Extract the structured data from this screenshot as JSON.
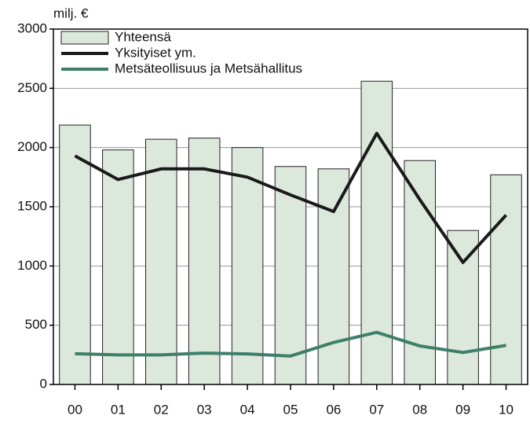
{
  "chart_data": {
    "type": "bar",
    "ylabel": "milj. €",
    "categories": [
      "00",
      "01",
      "02",
      "03",
      "04",
      "05",
      "06",
      "07",
      "08",
      "09",
      "10"
    ],
    "series": [
      {
        "name": "Yhteensä",
        "type": "bar",
        "color": "#dce8dc",
        "values": [
          2190,
          1980,
          2070,
          2080,
          2000,
          1840,
          1820,
          2560,
          1890,
          1300,
          1770
        ]
      },
      {
        "name": "Yksityiset ym.",
        "type": "line",
        "color": "#1a1a1a",
        "values": [
          1930,
          1730,
          1820,
          1820,
          1750,
          1600,
          1460,
          2120,
          1560,
          1030,
          1430
        ]
      },
      {
        "name": "Metsäteollisuus ja Metsähallitus",
        "type": "line",
        "color": "#3d7f68",
        "values": [
          260,
          250,
          250,
          265,
          258,
          240,
          355,
          440,
          325,
          270,
          330
        ]
      }
    ],
    "ylim": [
      0,
      3000
    ],
    "yticks": [
      0,
      500,
      1000,
      1500,
      2000,
      2500,
      3000
    ],
    "grid": true,
    "legend": "upper left"
  }
}
